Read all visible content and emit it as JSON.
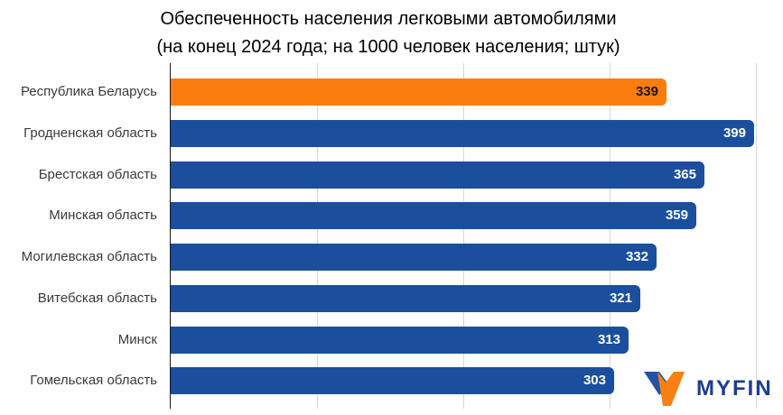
{
  "title": {
    "line1": "Обеспеченность населения легковыми автомобилями",
    "line2": "(на конец 2024 года; на 1000 человек населения; штук)"
  },
  "chart_data": {
    "type": "bar",
    "orientation": "horizontal",
    "title": "Обеспеченность населения легковыми автомобилями (на конец 2024 года; на 1000 человек населения; штук)",
    "categories": [
      "Республика Беларусь",
      "Гродненская область",
      "Брестская область",
      "Минская область",
      "Могилевская область",
      "Витебская область",
      "Минск",
      "Гомельская область"
    ],
    "values": [
      339,
      399,
      365,
      359,
      332,
      321,
      313,
      303
    ],
    "xlabel": "",
    "ylabel": "",
    "xlim": [
      0,
      400
    ],
    "gridlines": [
      100,
      200,
      300,
      400
    ],
    "grid": true,
    "legend": "none",
    "highlight_index": 0,
    "bar_color": "#1b4f9d",
    "highlight_color": "#fa7d0d",
    "value_label_color": "#ffffff",
    "highlight_value_label_color": "#241400",
    "gridline_color": "#d6d6d6",
    "axis_color": "#1a1a1a",
    "category_label_color": "#3a3a3a"
  },
  "logo": {
    "text": "MYFIN",
    "text_color": "#1c3e90",
    "icon": "myfin-v-icon",
    "icon_blue": "#2451a5",
    "icon_orange": "#f98012"
  }
}
